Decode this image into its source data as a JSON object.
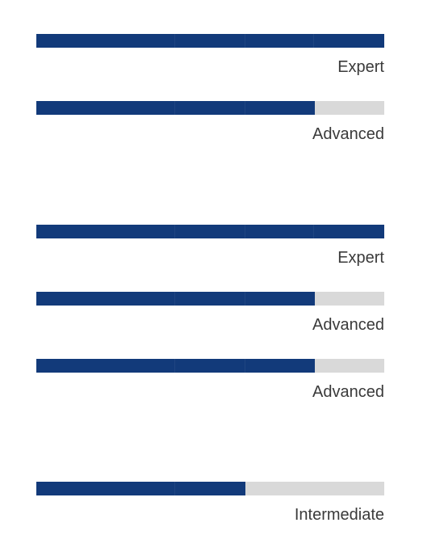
{
  "colors": {
    "fill": "#123a7a",
    "track": "#d9d9d9",
    "label": "#3a3a3a"
  },
  "skills": [
    {
      "level_label": "Expert",
      "progress": 1.0
    },
    {
      "level_label": "Advanced",
      "progress": 0.8
    },
    {
      "level_label": "Expert",
      "progress": 1.0
    },
    {
      "level_label": "Advanced",
      "progress": 0.8
    },
    {
      "level_label": "Advanced",
      "progress": 0.8
    },
    {
      "level_label": "Intermediate",
      "progress": 0.6
    }
  ]
}
